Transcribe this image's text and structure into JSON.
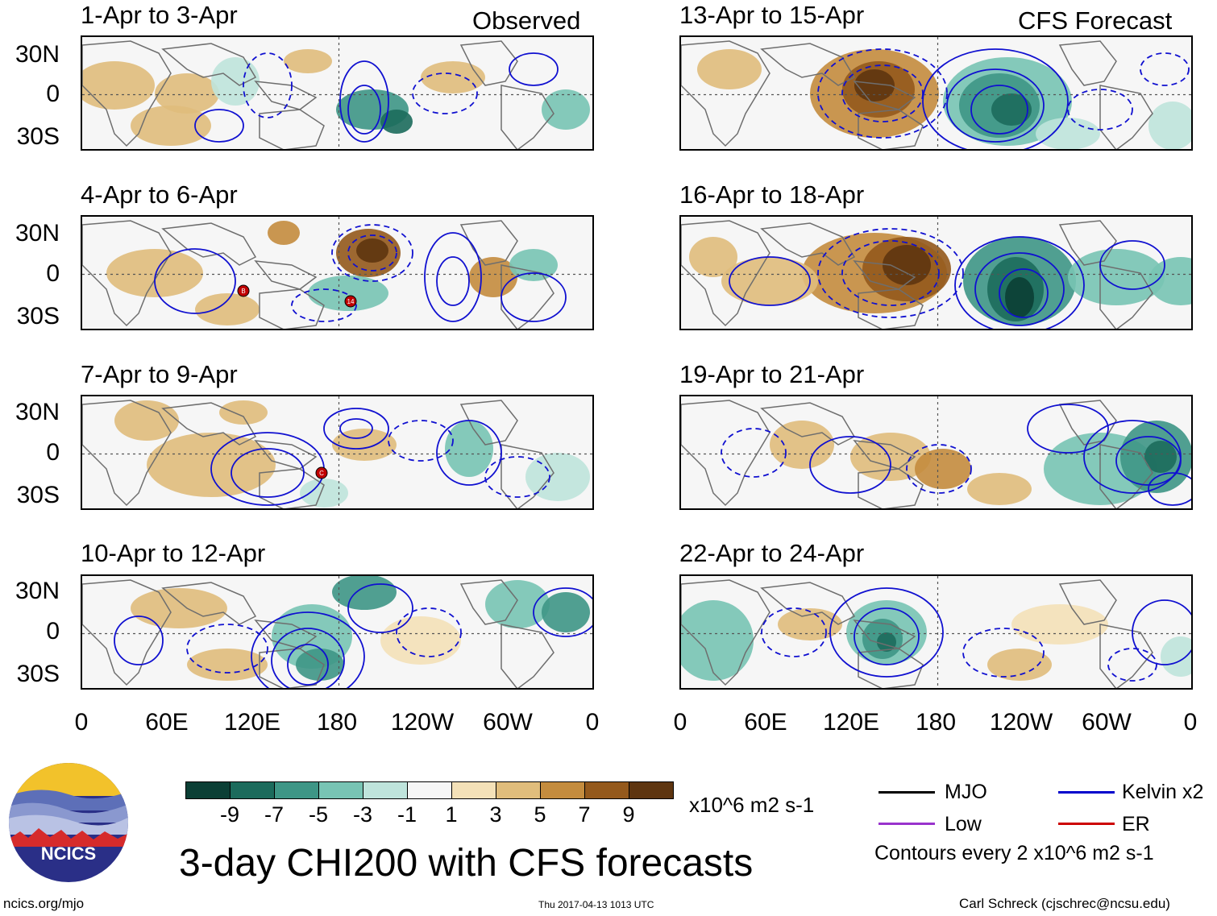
{
  "main_title": "3-day CHI200 with CFS forecasts",
  "observed_label": "Observed",
  "forecast_label": "CFS Forecast",
  "panels": [
    {
      "title": "1-Apr to 3-Apr",
      "group": "observed"
    },
    {
      "title": "4-Apr to 6-Apr",
      "group": "observed"
    },
    {
      "title": "7-Apr to 9-Apr",
      "group": "observed"
    },
    {
      "title": "10-Apr to 12-Apr",
      "group": "observed"
    },
    {
      "title": "13-Apr to 15-Apr",
      "group": "forecast"
    },
    {
      "title": "16-Apr to 18-Apr",
      "group": "forecast"
    },
    {
      "title": "19-Apr to 21-Apr",
      "group": "forecast"
    },
    {
      "title": "22-Apr to 24-Apr",
      "group": "forecast"
    }
  ],
  "lat_labels": [
    "30N",
    "0",
    "30S"
  ],
  "lon_labels": [
    "0",
    "60E",
    "120E",
    "180",
    "120W",
    "60W",
    "0"
  ],
  "colorbar": {
    "colors": [
      "#0b3f35",
      "#1c6b5c",
      "#3e9686",
      "#78c4b4",
      "#bfe4dc",
      "#f6f6f6",
      "#f4e1b8",
      "#e0bd7c",
      "#c48c3e",
      "#94591c",
      "#5e3510"
    ],
    "ticks": [
      "-9",
      "-7",
      "-5",
      "-3",
      "-1",
      "1",
      "3",
      "5",
      "7",
      "9"
    ],
    "units": "x10^6 m2 s-1"
  },
  "legend": {
    "items": [
      {
        "label": "MJO",
        "color": "#000000"
      },
      {
        "label": "Kelvin x2",
        "color": "#0000cc"
      },
      {
        "label": "Low",
        "color": "#9933cc"
      },
      {
        "label": "ER",
        "color": "#cc0000"
      }
    ],
    "contour_note": "Contours every 2 x10^6 m2 s-1"
  },
  "storm_markers": [
    {
      "panel": 1,
      "label": "B"
    },
    {
      "panel": 1,
      "label": "14"
    },
    {
      "panel": 2,
      "label": "C"
    }
  ],
  "logo_text": "NCICS",
  "footer": {
    "left": "ncics.org/mjo",
    "center": "Thu 2017-04-13 1013 UTC",
    "right": "Carl Schreck (cjschrec@ncsu.edu)"
  }
}
